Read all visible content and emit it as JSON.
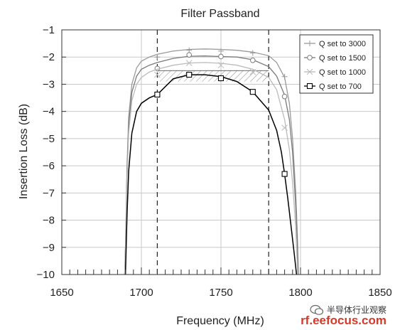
{
  "chart_data": {
    "type": "line",
    "title": "Filter Passband",
    "xlabel": "Frequency (MHz)",
    "ylabel": "Insertion Loss (dB)",
    "xlim": [
      1650,
      1850
    ],
    "ylim": [
      -10,
      -1
    ],
    "xticks": [
      1650,
      1700,
      1750,
      1800,
      1850
    ],
    "yticks": [
      -1,
      -2,
      -3,
      -4,
      -5,
      -6,
      -7,
      -8,
      -9,
      -10
    ],
    "xtick_labels": [
      "1650",
      "1700",
      "1750",
      "1800",
      "1850"
    ],
    "ytick_labels": [
      "−1",
      "−2",
      "−3",
      "−4",
      "−5",
      "−6",
      "−7",
      "−8",
      "−9",
      "−10"
    ],
    "grid": true,
    "legend_position": "top-right",
    "passband_markers": [
      1710,
      1780
    ],
    "spec_region": {
      "x": [
        1710,
        1780
      ],
      "y": [
        -2.5,
        -2.9
      ]
    },
    "series": [
      {
        "name": "Q set to 3000",
        "marker": "plus",
        "color": "#9a9a9a",
        "x": [
          1689.5,
          1690,
          1691,
          1692,
          1694,
          1697,
          1700,
          1705,
          1710,
          1720,
          1730,
          1740,
          1750,
          1760,
          1770,
          1780,
          1785,
          1790,
          1793,
          1795,
          1797,
          1798,
          1798.7
        ],
        "y": [
          -10,
          -9,
          -6,
          -4.2,
          -3.0,
          -2.4,
          -2.15,
          -2.0,
          -1.9,
          -1.78,
          -1.72,
          -1.7,
          -1.72,
          -1.75,
          -1.82,
          -1.95,
          -2.2,
          -2.75,
          -3.7,
          -5.0,
          -7.0,
          -8.5,
          -10
        ],
        "marker_x": [
          1710,
          1730,
          1750,
          1770,
          1790
        ],
        "marker_y": [
          -2.0,
          -1.75,
          -1.78,
          -1.85,
          -2.72
        ]
      },
      {
        "name": "Q set to 1500",
        "marker": "circle",
        "color": "#7a7a7a",
        "x": [
          1689.5,
          1690,
          1691,
          1692,
          1694,
          1697,
          1700,
          1705,
          1710,
          1720,
          1730,
          1740,
          1750,
          1760,
          1770,
          1780,
          1785,
          1790,
          1793,
          1795,
          1797,
          1798,
          1798.5
        ],
        "y": [
          -10,
          -9,
          -6.2,
          -4.5,
          -3.3,
          -2.7,
          -2.45,
          -2.3,
          -2.2,
          -2.05,
          -1.97,
          -1.96,
          -1.98,
          -2.0,
          -2.1,
          -2.35,
          -2.7,
          -3.4,
          -4.3,
          -5.5,
          -7.5,
          -8.8,
          -10
        ],
        "marker_x": [
          1710,
          1730,
          1750,
          1770,
          1790
        ],
        "marker_y": [
          -2.42,
          -1.92,
          -1.98,
          -2.12,
          -3.45
        ]
      },
      {
        "name": "Q set to 1000",
        "marker": "x",
        "color": "#bbbbbb",
        "x": [
          1689.5,
          1690,
          1691,
          1692,
          1694,
          1697,
          1700,
          1705,
          1710,
          1720,
          1730,
          1740,
          1750,
          1760,
          1770,
          1780,
          1785,
          1790,
          1793,
          1795,
          1797,
          1798.2
        ],
        "y": [
          -10,
          -9.2,
          -6.5,
          -4.8,
          -3.6,
          -3.0,
          -2.75,
          -2.55,
          -2.45,
          -2.3,
          -2.22,
          -2.2,
          -2.23,
          -2.3,
          -2.45,
          -2.75,
          -3.2,
          -4.3,
          -5.4,
          -6.6,
          -8.3,
          -10
        ],
        "marker_x": [
          1710,
          1730,
          1750,
          1770,
          1790
        ],
        "marker_y": [
          -2.65,
          -2.22,
          -2.3,
          -2.55,
          -4.6
        ]
      },
      {
        "name": "Q set to 700",
        "marker": "square",
        "color": "#000000",
        "x": [
          1690,
          1691,
          1692,
          1694,
          1697,
          1700,
          1705,
          1710,
          1720,
          1730,
          1740,
          1750,
          1760,
          1770,
          1780,
          1785,
          1788,
          1790,
          1792,
          1794,
          1796,
          1797.5
        ],
        "y": [
          -10,
          -7.8,
          -6.2,
          -4.8,
          -4.0,
          -3.7,
          -3.5,
          -3.38,
          -2.8,
          -2.65,
          -2.65,
          -2.72,
          -2.9,
          -3.28,
          -3.95,
          -4.7,
          -5.5,
          -6.3,
          -7.2,
          -8.2,
          -9.2,
          -10
        ],
        "marker_x": [
          1710,
          1730,
          1750,
          1770,
          1790
        ],
        "marker_y": [
          -3.38,
          -2.65,
          -2.78,
          -3.28,
          -6.3
        ]
      }
    ]
  },
  "watermark": {
    "wechat_text": "半导体行业观察",
    "site_text": "rf.eefocus.com"
  }
}
